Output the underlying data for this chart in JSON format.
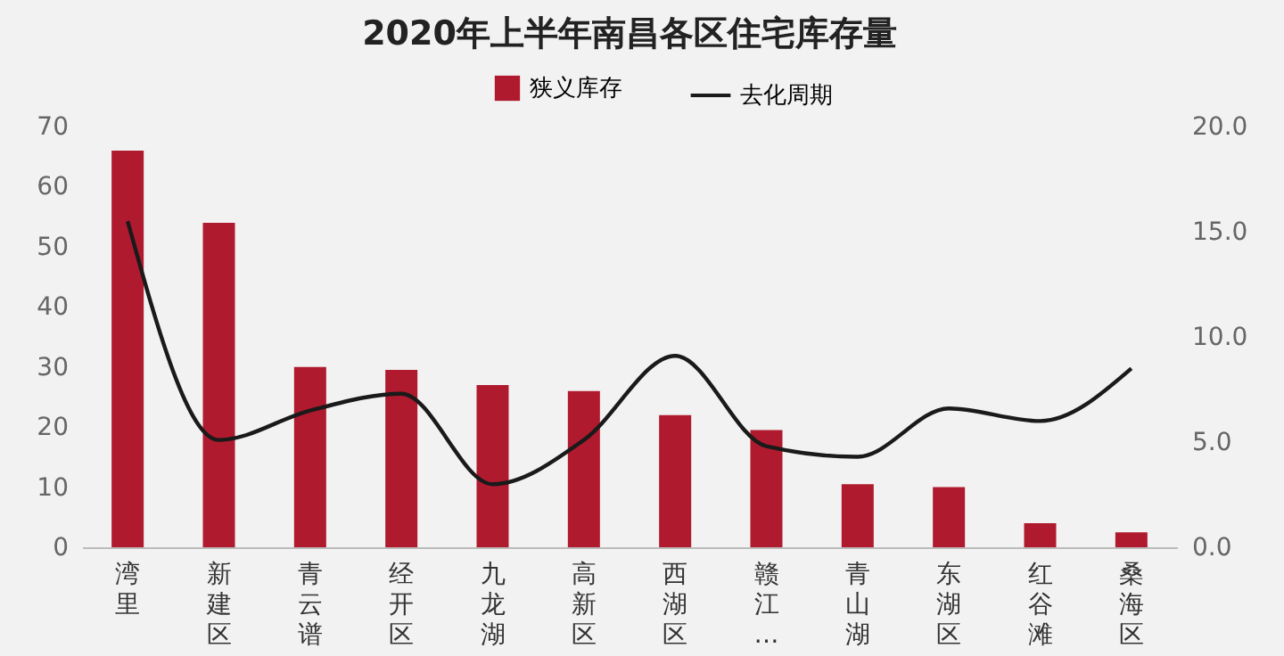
{
  "chart_data": {
    "type": "bar",
    "title": "2020年上半年南昌各区住宅库存量",
    "categories": [
      "湾里",
      "新建区",
      "青云谱",
      "经开区",
      "九龙湖",
      "高新区",
      "西湖区",
      "赣江…",
      "青山湖",
      "东湖区",
      "红谷滩",
      "桑海区"
    ],
    "series": [
      {
        "name": "狭义库存",
        "color": "#b01a2e",
        "values": [
          66,
          54,
          30,
          29.5,
          27,
          26,
          22,
          19.5,
          10.5,
          10,
          4,
          2.5
        ]
      },
      {
        "name": "去化周期",
        "type": "line",
        "axis": "y2",
        "color": "#1a1a1a",
        "values": [
          15.5,
          5.1,
          6.5,
          7.3,
          3.0,
          5.1,
          9.1,
          4.8,
          4.3,
          6.6,
          6.0,
          8.5
        ]
      }
    ],
    "ylim": [
      0,
      70
    ],
    "yticks": [
      0,
      10,
      20,
      30,
      40,
      50,
      60,
      70
    ],
    "y2lim": [
      0,
      20
    ],
    "y2ticks": [
      {
        "value": 0,
        "label": "0.0"
      },
      {
        "value": 5,
        "label": "5.0"
      },
      {
        "value": 10,
        "label": "10.0"
      },
      {
        "value": 15,
        "label": "15.0"
      },
      {
        "value": 20,
        "label": "20.0"
      }
    ],
    "grid": false,
    "legend": "top"
  }
}
